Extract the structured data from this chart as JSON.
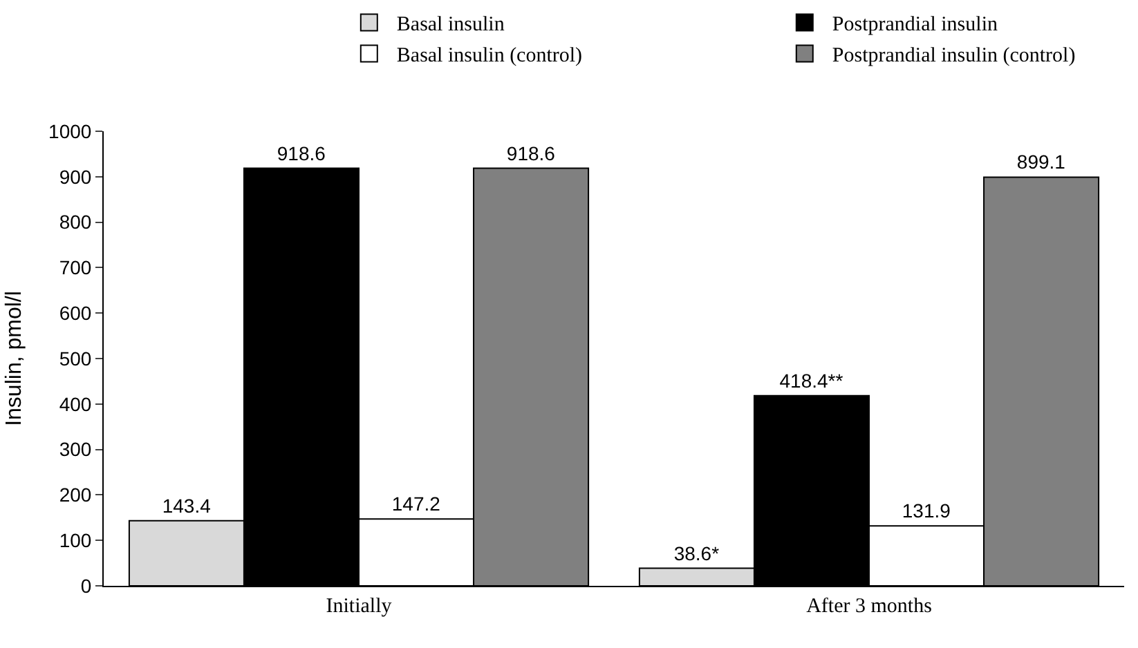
{
  "chart_data": {
    "type": "bar",
    "ylabel": "Insulin, pmol/l",
    "categories": [
      "Initially",
      "After 3 months"
    ],
    "series": [
      {
        "name": "Basal insulin",
        "color": "#d9d9d9",
        "values": [
          143.4,
          38.6
        ],
        "value_labels": [
          "143.4",
          "38.6*"
        ]
      },
      {
        "name": "Postprandial insulin",
        "color": "#000000",
        "values": [
          918.6,
          418.4
        ],
        "value_labels": [
          "918.6",
          "418.4**"
        ]
      },
      {
        "name": "Basal insulin (control)",
        "color": "#ffffff",
        "values": [
          147.2,
          131.9
        ],
        "value_labels": [
          "147.2",
          "131.9"
        ]
      },
      {
        "name": "Postprandial insulin (control)",
        "color": "#808080",
        "values": [
          918.6,
          899.1
        ],
        "value_labels": [
          "918.6",
          "899.1"
        ]
      }
    ],
    "ylim": [
      0,
      1000
    ],
    "yticks": [
      0,
      100,
      200,
      300,
      400,
      500,
      600,
      700,
      800,
      900,
      1000
    ],
    "grid": false,
    "legend": "top"
  }
}
